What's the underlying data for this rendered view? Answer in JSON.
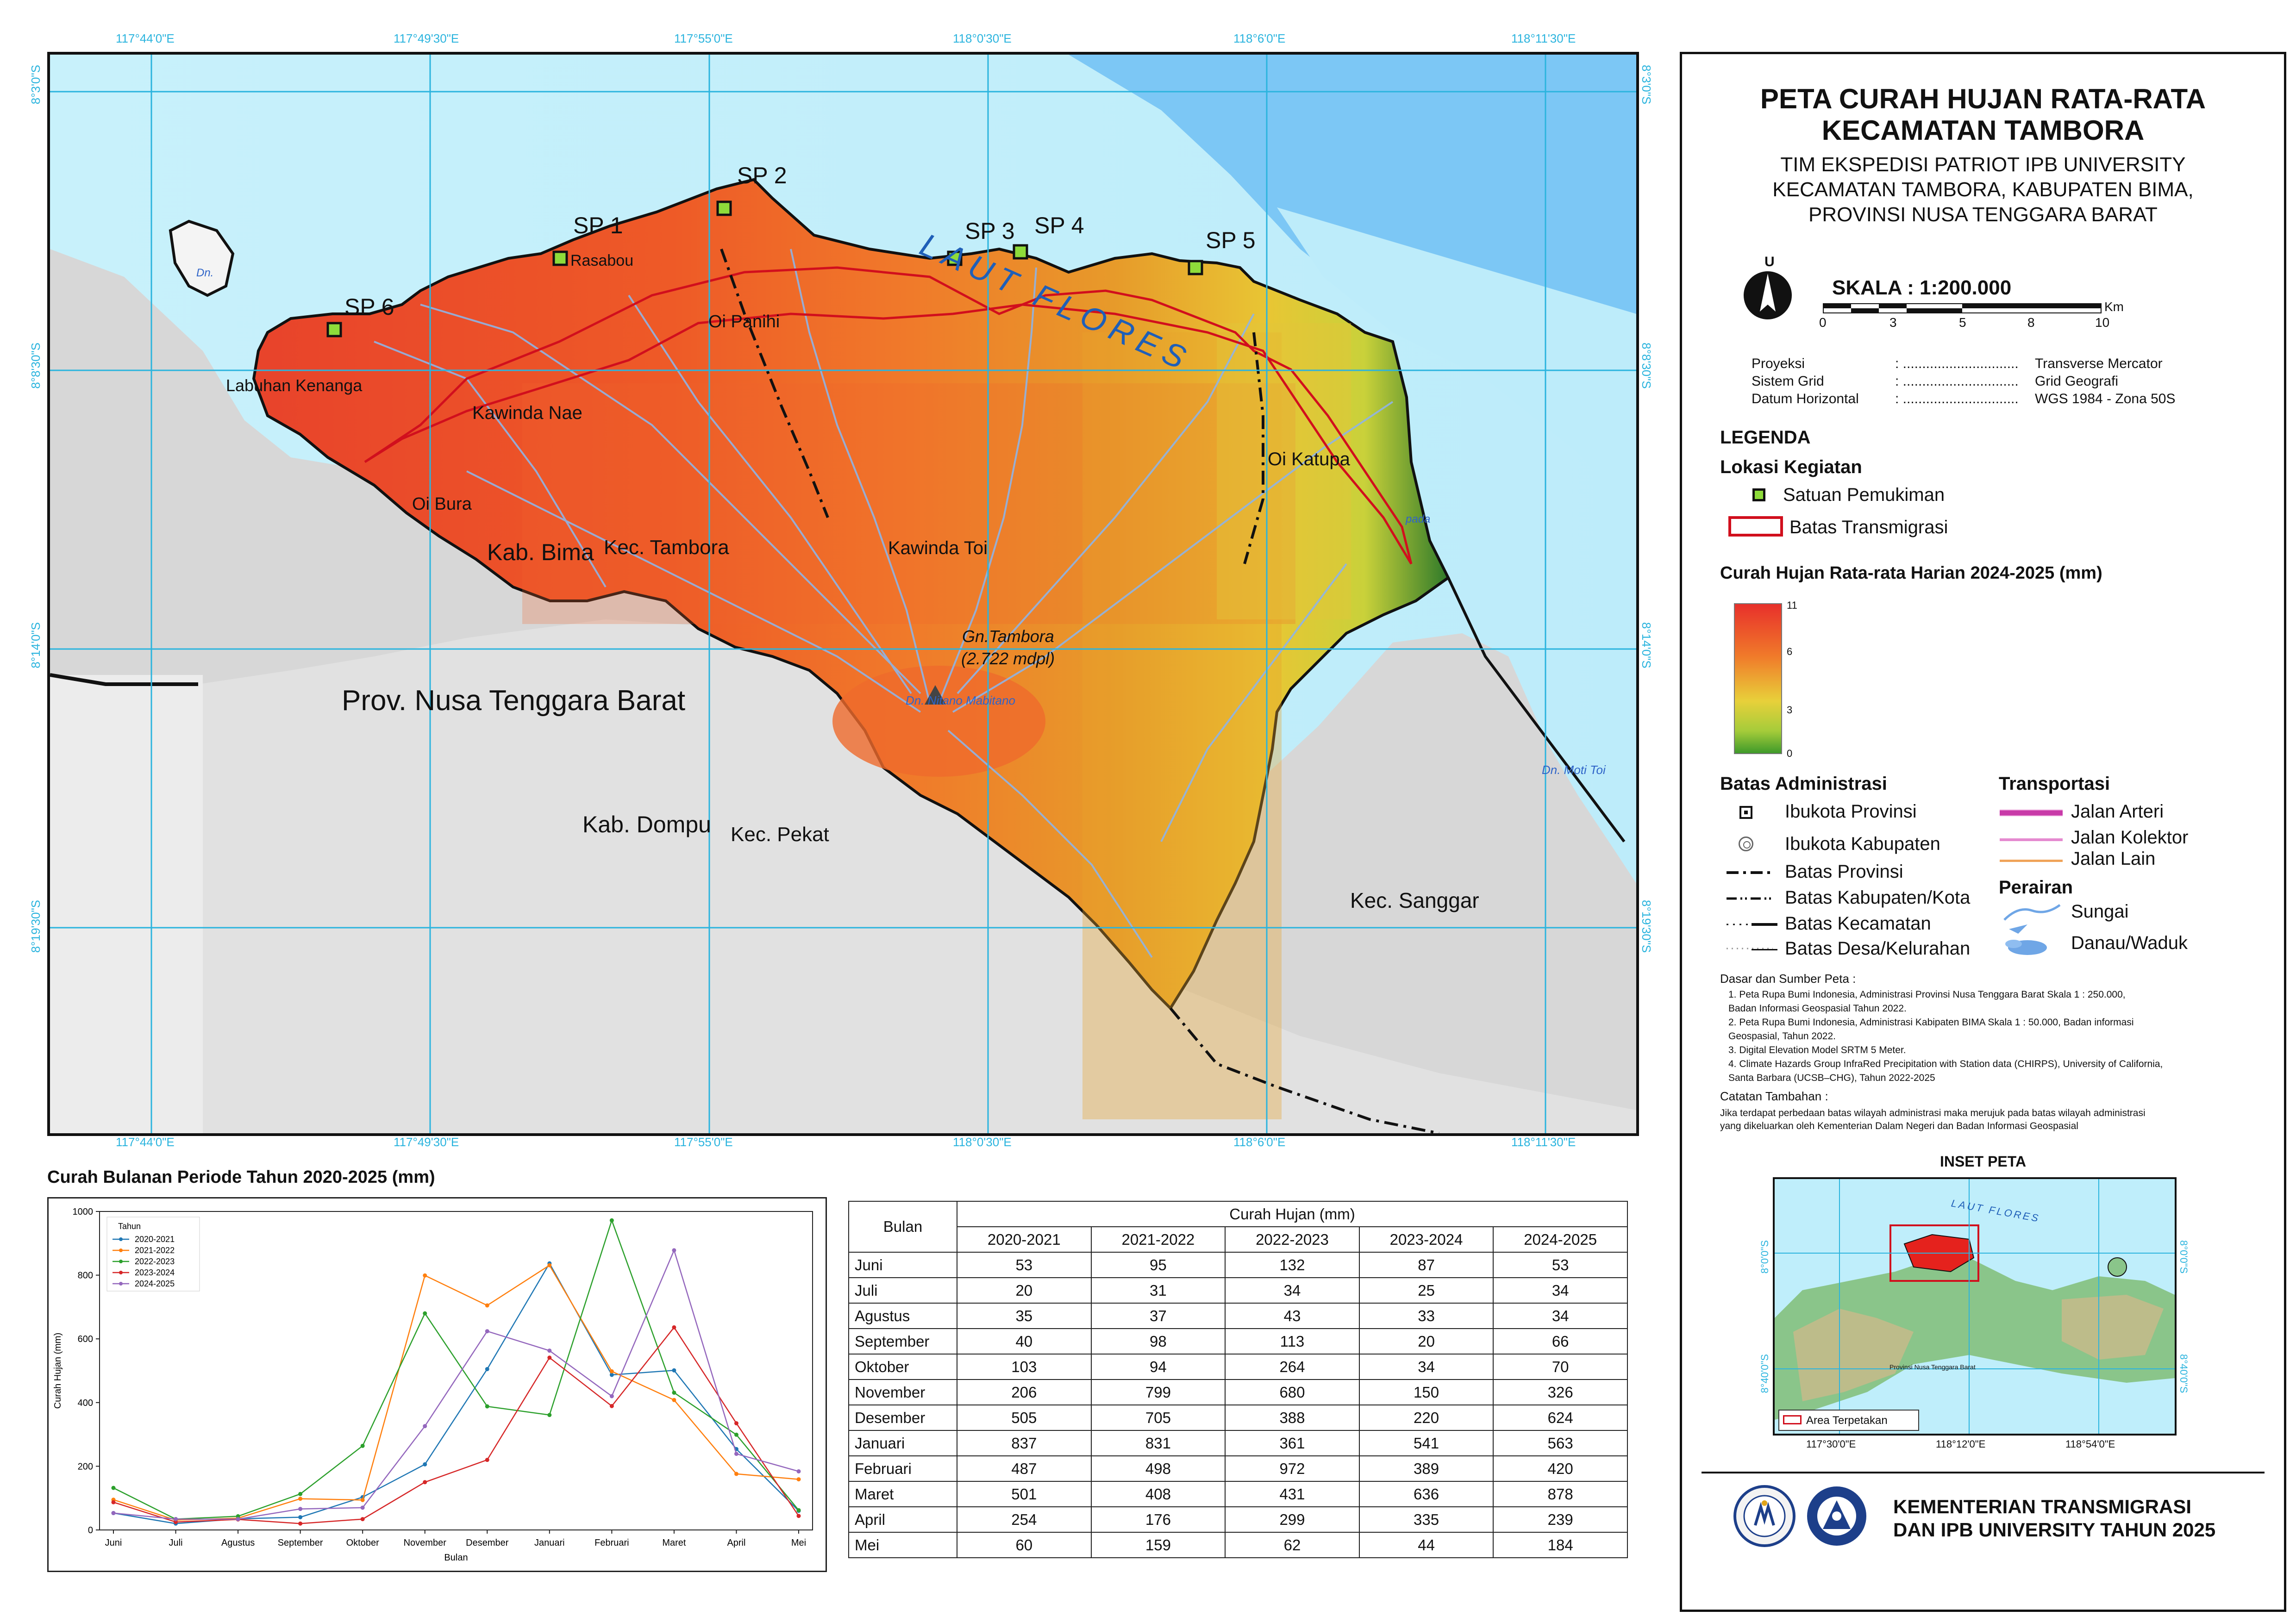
{
  "map": {
    "title_line1": "PETA CURAH HUJAN RATA-RATA",
    "title_line2": "KECAMATAN TAMBORA",
    "subtitle_line1": "TIM EKSPEDISI PATRIOT IPB UNIVERSITY",
    "subtitle_line2": "KECAMATAN TAMBORA, KABUPATEN BIMA,",
    "subtitle_line3": "PROVINSI NUSA TENGGARA BARAT",
    "north_letter": "U",
    "scale_label": "SKALA : 1:200.000",
    "scale_ticks": [
      "0",
      "3",
      "5",
      "8",
      "10"
    ],
    "scale_unit": "Km",
    "proj": [
      {
        "k": "Proyeksi",
        "v": "Transverse Mercator"
      },
      {
        "k": "Sistem Grid",
        "v": "Grid Geografi"
      },
      {
        "k": "Datum Horizontal",
        "v": "WGS 1984 - Zona 50S"
      }
    ],
    "proj_sep": ": ..............................",
    "lon_labels": [
      "117°44'0\"E",
      "117°49'30\"E",
      "117°55'0\"E",
      "118°0'30\"E",
      "118°6'0\"E",
      "118°11'30\"E"
    ],
    "lat_labels": [
      "8°3'0\"S",
      "8°8'30\"S",
      "8°14'0\"S",
      "8°19'30\"S"
    ],
    "sea_label": "LAUT FLORES",
    "points": [
      "SP 1",
      "SP 2",
      "SP 3",
      "SP 4",
      "SP 5",
      "SP 6"
    ],
    "places": {
      "rasabou": "Rasabou",
      "oi_panihi": "Oi Panihi",
      "labuhan": "Labuhan Kenanga",
      "kawinda_nae": "Kawinda Nae",
      "oi_bura": "Oi Bura",
      "kab_bima": "Kab. Bima",
      "kec_tambora": "Kec. Tambora",
      "kawinda_toi": "Kawinda Toi",
      "oi_katupa": "Oi Katupa",
      "gn": "Gn.Tambora",
      "gn_elev": "(2.722 mdpl)",
      "danau": "Dn. Nitano Mabitano",
      "prov": "Prov. Nusa Tenggara Barat",
      "kab_dompu": "Kab. Dompu",
      "kec_pekat": "Kec. Pekat",
      "kec_sanggar": "Kec. Sanggar",
      "dn_moti": "Dn. Moti Toi",
      "dn": "Dn.",
      "pada": "pada"
    }
  },
  "legend": {
    "heading": "LEGENDA",
    "lokasi_heading": "Lokasi Kegiatan",
    "satuan": "Satuan Pemukiman",
    "batas_trans": "Batas Transmigrasi",
    "curah_heading": "Curah Hujan Rata-rata Harian 2024-2025 (mm)",
    "ramp_ticks": [
      "11",
      "6",
      "3",
      "0"
    ],
    "admin_heading": "Batas Administrasi",
    "admin_items": [
      "Ibukota Provinsi",
      "Ibukota Kabupaten",
      "Batas Provinsi",
      "Batas Kabupaten/Kota",
      "Batas Kecamatan",
      "Batas Desa/Kelurahan"
    ],
    "transport_heading": "Transportasi",
    "transport_items": [
      "Jalan Arteri",
      "Jalan Kolektor",
      "Jalan Lain"
    ],
    "perairan_heading": "Perairan",
    "perairan_items": [
      "Sungai",
      "Danau/Waduk"
    ],
    "sources_heading": "Dasar dan Sumber Peta :",
    "sources": [
      "1. Peta Rupa Bumi Indonesia, Administrasi Provinsi Nusa Tenggara Barat Skala 1 : 250.000,",
      "    Badan Informasi Geospasial Tahun 2022.",
      "2. Peta Rupa Bumi Indonesia, Administrasi Kabipaten BIMA Skala 1 : 50.000, Badan informasi",
      "    Geospasial, Tahun 2022.",
      "3. Digital Elevation Model SRTM 5 Meter.",
      "4. Climate Hazards Group InfraRed Precipitation with Station data (CHIRPS), University of California,",
      "    Santa Barbara (UCSB–CHG), Tahun 2022-2025"
    ],
    "notes_heading": "Catatan Tambahan :",
    "notes": [
      "Jika terdapat perbedaan batas wilayah administrasi maka merujuk pada batas wilayah administrasi",
      "yang dikeluarkan oleh Kementerian Dalam Negeri dan Badan Informasi Geospasial"
    ],
    "inset_title": "INSET PETA",
    "inset_sea": "LAUT FLORES",
    "inset_lat": [
      "8°0'0\"S",
      "8°40'0\"S"
    ],
    "inset_lon": [
      "117°30'0\"E",
      "118°12'0\"E",
      "118°54'0\"E"
    ],
    "inset_prov": "Provinsi Nusa Tenggara Barat",
    "inset_area": "Area Terpetakan",
    "footer_line1": "KEMENTERIAN TRANSMIGRASI",
    "footer_line2": "DAN IPB UNIVERSITY TAHUN 2025"
  },
  "chart_title": "Curah Bulanan Periode Tahun 2020-2025 (mm)",
  "chart_data": {
    "type": "line",
    "title": "",
    "xlabel": "Bulan",
    "ylabel": "Curah Hujan (mm)",
    "ylim": [
      0,
      1000
    ],
    "yticks": [
      0,
      200,
      400,
      600,
      800,
      1000
    ],
    "legend_title": "Tahun",
    "legend_position": "top-left",
    "categories": [
      "Juni",
      "Juli",
      "Agustus",
      "September",
      "Oktober",
      "November",
      "Desember",
      "Januari",
      "Februari",
      "Maret",
      "April",
      "Mei"
    ],
    "series": [
      {
        "name": "2020-2021",
        "color": "#1f77b4",
        "values": [
          53,
          20,
          35,
          40,
          103,
          206,
          505,
          837,
          487,
          501,
          254,
          60
        ]
      },
      {
        "name": "2021-2022",
        "color": "#ff7f0e",
        "values": [
          95,
          31,
          37,
          98,
          94,
          799,
          705,
          831,
          498,
          408,
          176,
          159
        ]
      },
      {
        "name": "2022-2023",
        "color": "#2ca02c",
        "values": [
          132,
          34,
          43,
          113,
          264,
          680,
          388,
          361,
          972,
          431,
          299,
          62
        ]
      },
      {
        "name": "2023-2024",
        "color": "#d62728",
        "values": [
          87,
          25,
          33,
          20,
          34,
          150,
          220,
          541,
          389,
          636,
          335,
          44
        ]
      },
      {
        "name": "2024-2025",
        "color": "#9467bd",
        "values": [
          53,
          34,
          34,
          66,
          70,
          326,
          624,
          563,
          420,
          878,
          239,
          184
        ]
      }
    ]
  },
  "table": {
    "col_bulan": "Bulan",
    "col_group": "Curah Hujan (mm)",
    "years": [
      "2020-2021",
      "2021-2022",
      "2022-2023",
      "2023-2024",
      "2024-2025"
    ],
    "rows": [
      {
        "m": "Juni",
        "v": [
          "53",
          "95",
          "132",
          "87",
          "53"
        ]
      },
      {
        "m": "Juli",
        "v": [
          "20",
          "31",
          "34",
          "25",
          "34"
        ]
      },
      {
        "m": "Agustus",
        "v": [
          "35",
          "37",
          "43",
          "33",
          "34"
        ]
      },
      {
        "m": "September",
        "v": [
          "40",
          "98",
          "113",
          "20",
          "66"
        ]
      },
      {
        "m": "Oktober",
        "v": [
          "103",
          "94",
          "264",
          "34",
          "70"
        ]
      },
      {
        "m": "November",
        "v": [
          "206",
          "799",
          "680",
          "150",
          "326"
        ]
      },
      {
        "m": "Desember",
        "v": [
          "505",
          "705",
          "388",
          "220",
          "624"
        ]
      },
      {
        "m": "Januari",
        "v": [
          "837",
          "831",
          "361",
          "541",
          "563"
        ]
      },
      {
        "m": "Februari",
        "v": [
          "487",
          "498",
          "972",
          "389",
          "420"
        ]
      },
      {
        "m": "Maret",
        "v": [
          "501",
          "408",
          "431",
          "636",
          "878"
        ]
      },
      {
        "m": "April",
        "v": [
          "254",
          "176",
          "299",
          "335",
          "239"
        ]
      },
      {
        "m": "Mei",
        "v": [
          "60",
          "159",
          "62",
          "44",
          "184"
        ]
      }
    ]
  }
}
